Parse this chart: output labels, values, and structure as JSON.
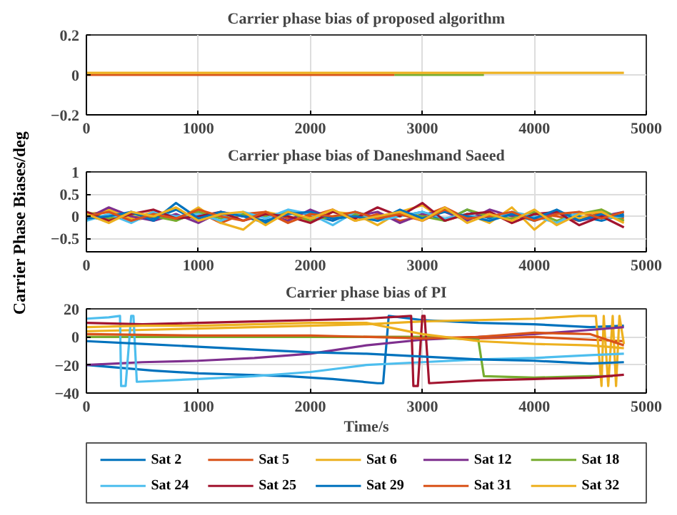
{
  "chart_data": [
    {
      "type": "line",
      "title": "Carrier phase bias of proposed algorithm",
      "xlim": [
        0,
        5000
      ],
      "xticks": [
        0,
        1000,
        2000,
        3000,
        4000,
        5000
      ],
      "ylim": [
        -0.2,
        0.2
      ],
      "yticks": [
        -0.2,
        0,
        0.2
      ],
      "grid": true,
      "series": [
        {
          "color": "#77ac30",
          "x": [
            2750,
            3150,
            3550
          ],
          "values": [
            0,
            0,
            0
          ]
        },
        {
          "color": "#d95319",
          "x": [
            0,
            1375,
            2750
          ],
          "values": [
            0,
            0,
            0
          ]
        },
        {
          "color": "#edb120",
          "x": [
            0,
            2400,
            4800
          ],
          "values": [
            0.01,
            0.01,
            0.01
          ]
        }
      ]
    },
    {
      "type": "line",
      "title": "Carrier phase bias of Daneshmand Saeed",
      "ylabel": "Carrier Phase Biases/deg",
      "xlim": [
        0,
        5000
      ],
      "xticks": [
        0,
        1000,
        2000,
        3000,
        4000,
        5000
      ],
      "ylim": [
        -0.8,
        1
      ],
      "yticks": [
        -0.5,
        0,
        0.5,
        1
      ],
      "grid": true,
      "x": [
        0,
        200,
        400,
        600,
        800,
        1000,
        1200,
        1400,
        1600,
        1800,
        2000,
        2200,
        2400,
        2600,
        2800,
        3000,
        3200,
        3400,
        3600,
        3800,
        4000,
        4200,
        4400,
        4600,
        4800
      ],
      "series": [
        {
          "color": "#0072bd",
          "values": [
            0,
            -0.1,
            0.1,
            -0.05,
            0.15,
            -0.1,
            0.05,
            0,
            -0.15,
            0.1,
            0.05,
            -0.1,
            0.1,
            -0.05,
            0,
            0.1,
            -0.1,
            0.15,
            -0.05,
            0.05,
            -0.1,
            0.1,
            0,
            -0.1,
            0.05
          ]
        },
        {
          "color": "#d95319",
          "values": [
            0.05,
            0.1,
            -0.1,
            0,
            -0.05,
            0.1,
            -0.15,
            0.05,
            0.1,
            -0.05,
            0,
            0.15,
            -0.1,
            0.05,
            -0.1,
            0,
            0.2,
            -0.05,
            0.1,
            -0.15,
            0.05,
            0,
            -0.1,
            0.1,
            -0.05
          ]
        },
        {
          "color": "#edb120",
          "values": [
            0,
            0.15,
            -0.05,
            0.1,
            -0.1,
            0.2,
            -0.15,
            -0.3,
            0.1,
            0,
            -0.1,
            0.1,
            0.05,
            -0.2,
            0.1,
            0.25,
            -0.1,
            0.05,
            -0.15,
            0.2,
            -0.3,
            0.1,
            -0.05,
            0.15,
            -0.1
          ]
        },
        {
          "color": "#7e2f8e",
          "values": [
            -0.05,
            0.2,
            0,
            -0.1,
            0.05,
            -0.15,
            0.1,
            0,
            0.05,
            -0.1,
            0.15,
            -0.05,
            0,
            0.1,
            -0.15,
            0.05,
            0.1,
            -0.1,
            0.15,
            0,
            -0.05,
            0.1,
            -0.1,
            0,
            0.1
          ]
        },
        {
          "color": "#77ac30",
          "values": [
            0.1,
            -0.05,
            0.05,
            0,
            -0.1,
            0.1,
            -0.05,
            0.05,
            0,
            0.1,
            -0.1,
            0,
            0.05,
            -0.05,
            0.1,
            0,
            -0.1,
            0.15,
            0,
            -0.05,
            0.1,
            -0.1,
            0.05,
            0.15,
            -0.1
          ]
        },
        {
          "color": "#4dbeee",
          "values": [
            -0.1,
            0.05,
            -0.15,
            0.1,
            0,
            0.05,
            -0.1,
            0.1,
            -0.05,
            0.15,
            0.05,
            -0.2,
            0.1,
            -0.1,
            0,
            0.1,
            -0.05,
            0.05,
            -0.1,
            0.1,
            0,
            -0.15,
            0.1,
            -0.05,
            0
          ]
        },
        {
          "color": "#a2142f",
          "values": [
            0.1,
            -0.1,
            0.05,
            0.15,
            -0.05,
            0,
            0.1,
            -0.1,
            0.05,
            0,
            -0.15,
            0.1,
            -0.05,
            0.2,
            0,
            0.3,
            -0.1,
            0.05,
            0.1,
            -0.15,
            0.05,
            0.1,
            -0.2,
            0,
            -0.25
          ]
        },
        {
          "color": "#0072bd",
          "values": [
            -0.05,
            0,
            0.1,
            -0.1,
            0.3,
            -0.05,
            0.1,
            0,
            -0.1,
            0.05,
            0.1,
            -0.05,
            0,
            -0.1,
            0.15,
            -0.05,
            0.1,
            0,
            -0.1,
            0.05,
            -0.05,
            0.15,
            -0.1,
            0.05,
            0
          ]
        },
        {
          "color": "#d95319",
          "values": [
            0,
            0.1,
            -0.1,
            0.05,
            -0.05,
            0.15,
            0,
            -0.1,
            0.1,
            -0.15,
            0.05,
            0,
            0.1,
            -0.05,
            0.05,
            -0.1,
            0.15,
            -0.05,
            0,
            0.1,
            -0.1,
            0.05,
            0.1,
            -0.05,
            0.1
          ]
        },
        {
          "color": "#edb120",
          "values": [
            0.05,
            -0.15,
            0.1,
            0,
            0.2,
            -0.1,
            0.05,
            0.1,
            -0.2,
            0.1,
            -0.05,
            0.15,
            -0.1,
            0,
            0.1,
            -0.1,
            0.2,
            -0.15,
            0.05,
            -0.1,
            0.15,
            -0.2,
            0.05,
            0.1,
            -0.15
          ]
        }
      ]
    },
    {
      "type": "line",
      "title": "Carrier phase bias of PI",
      "xlabel": "Time/s",
      "xlim": [
        0,
        5000
      ],
      "xticks": [
        0,
        1000,
        2000,
        3000,
        4000,
        5000
      ],
      "ylim": [
        -40,
        20
      ],
      "yticks": [
        -40,
        -20,
        0,
        20
      ],
      "grid": true,
      "legend": "bottom",
      "series": [
        {
          "name": "Sat 2",
          "color": "#0072bd",
          "x": [
            0,
            300,
            600,
            1000,
            1400,
            1800,
            2200,
            2600,
            2650,
            2700,
            3000,
            3500,
            4000,
            4500,
            4800
          ],
          "values": [
            -20,
            -22,
            -24,
            -26,
            -27,
            -28,
            -30,
            -33,
            -33,
            15,
            12,
            10,
            9,
            7,
            8
          ]
        },
        {
          "name": "Sat 5",
          "color": "#d95319",
          "x": [
            0,
            1000,
            2000,
            3000,
            3500,
            4000,
            4500,
            4800
          ],
          "values": [
            0,
            0,
            0,
            0,
            -1,
            0,
            -2,
            -3
          ]
        },
        {
          "name": "Sat 6",
          "color": "#edb120",
          "x": [
            0,
            500,
            1000,
            1500,
            2000,
            2500,
            3000,
            3500,
            4000,
            4400,
            4550,
            4600,
            4620,
            4660,
            4700,
            4730,
            4760,
            4800
          ],
          "values": [
            4,
            5,
            6,
            7,
            8,
            9,
            11,
            12,
            13,
            15,
            15,
            -35,
            15,
            -35,
            15,
            -35,
            15,
            -5
          ]
        },
        {
          "name": "Sat 12",
          "color": "#7e2f8e",
          "x": [
            0,
            500,
            1000,
            1500,
            2000,
            2500,
            3000,
            3500,
            4000,
            4500,
            4800
          ],
          "values": [
            -20,
            -18,
            -17,
            -15,
            -12,
            -6,
            -2,
            0,
            2,
            5,
            7
          ]
        },
        {
          "name": "Sat 18",
          "color": "#77ac30",
          "x": [
            0,
            1000,
            2000,
            3000,
            3500,
            3550,
            4000,
            4500,
            4700
          ],
          "values": [
            0,
            0,
            0,
            0,
            -2,
            -28,
            -29,
            -28,
            -28
          ]
        },
        {
          "name": "Sat 24",
          "color": "#4dbeee",
          "x": [
            0,
            200,
            300,
            310,
            350,
            400,
            420,
            450,
            1000,
            1500,
            2000,
            2500,
            3000,
            3500,
            4000,
            4500,
            4800
          ],
          "values": [
            13,
            14,
            15,
            -35,
            -35,
            15,
            15,
            -32,
            -30,
            -28,
            -25,
            -20,
            -18,
            -16,
            -15,
            -13,
            -12
          ]
        },
        {
          "name": "Sat 25",
          "color": "#a2142f",
          "x": [
            0,
            500,
            1000,
            1500,
            2000,
            2500,
            2900,
            2920,
            2960,
            3000,
            3020,
            3060,
            3500,
            4000,
            4500,
            4800
          ],
          "values": [
            10,
            9,
            10,
            11,
            12,
            13,
            15,
            -35,
            -35,
            15,
            15,
            -33,
            -31,
            -30,
            -29,
            -27
          ]
        },
        {
          "name": "Sat 29",
          "color": "#0072bd",
          "x": [
            0,
            500,
            1000,
            1500,
            2000,
            2500,
            3000,
            3500,
            4000,
            4500,
            4800
          ],
          "values": [
            -3,
            -5,
            -7,
            -9,
            -11,
            -12,
            -14,
            -16,
            -17,
            -19,
            -18
          ]
        },
        {
          "name": "Sat 31",
          "color": "#d95319",
          "x": [
            0,
            1000,
            2000,
            3000,
            3500,
            4000,
            4500,
            4800
          ],
          "values": [
            2,
            1,
            1,
            -1,
            0,
            3,
            2,
            -6
          ]
        },
        {
          "name": "Sat 32",
          "color": "#edb120",
          "x": [
            0,
            500,
            1000,
            1500,
            2000,
            2500,
            3000,
            3500,
            4000,
            4500,
            4800
          ],
          "values": [
            7,
            8,
            8,
            9,
            10,
            10,
            2,
            -3,
            -5,
            -6,
            -8
          ]
        }
      ]
    }
  ]
}
